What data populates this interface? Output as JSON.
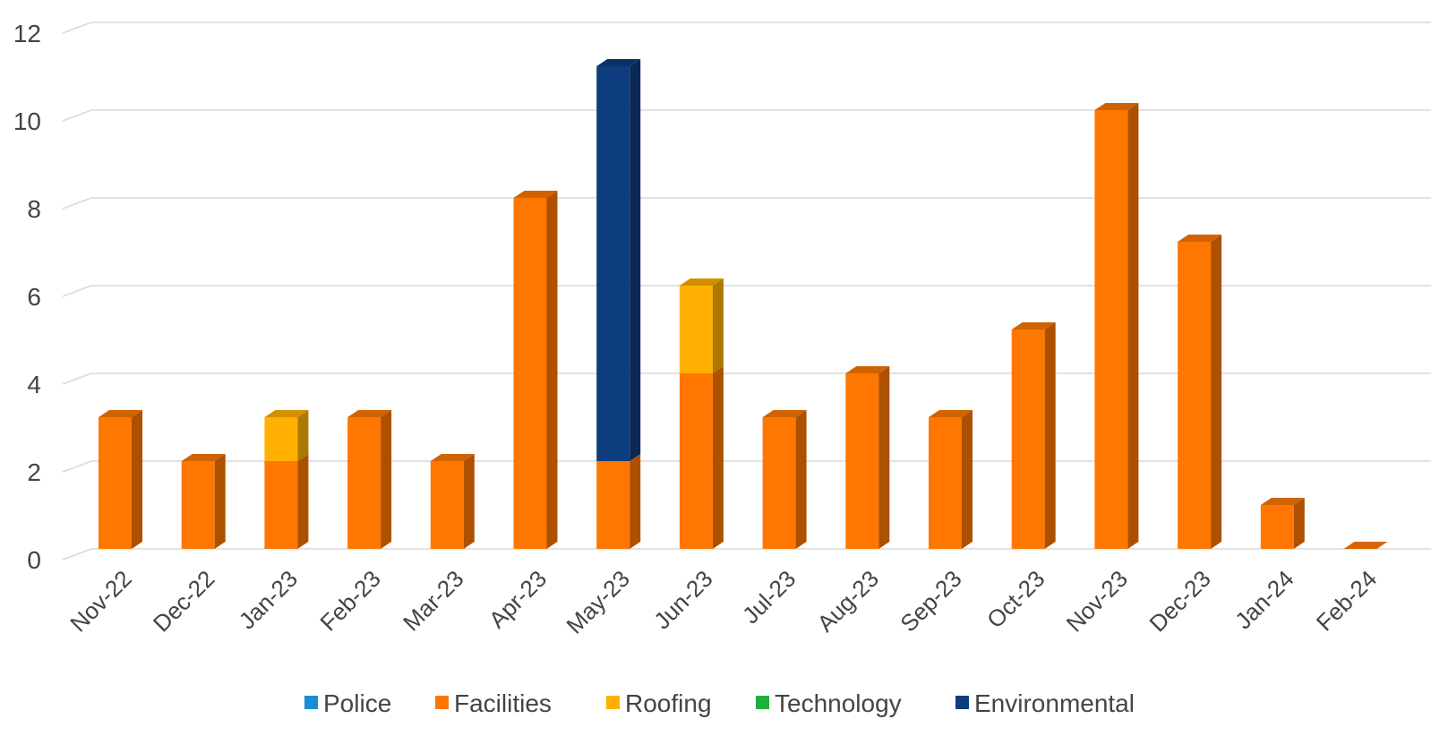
{
  "chart_data": {
    "type": "bar",
    "stacked": true,
    "three_d": true,
    "categories": [
      "Nov-22",
      "Dec-22",
      "Jan-23",
      "Feb-23",
      "Mar-23",
      "Apr-23",
      "May-23",
      "Jun-23",
      "Jul-23",
      "Aug-23",
      "Sep-23",
      "Oct-23",
      "Nov-23",
      "Dec-23",
      "Jan-24",
      "Feb-24"
    ],
    "series": [
      {
        "name": "Police",
        "color": "#1B8DD6",
        "values": [
          0,
          0,
          0,
          0,
          0,
          0,
          0,
          0,
          0,
          0,
          0,
          0,
          0,
          0,
          0,
          0
        ]
      },
      {
        "name": "Facilities",
        "color": "#FF7700",
        "values": [
          3,
          2,
          2,
          3,
          2,
          8,
          2,
          4,
          3,
          4,
          3,
          5,
          10,
          7,
          1,
          0
        ]
      },
      {
        "name": "Roofing",
        "color": "#FFB000",
        "values": [
          0,
          0,
          1,
          0,
          0,
          0,
          0,
          2,
          0,
          0,
          0,
          0,
          0,
          0,
          0,
          0
        ]
      },
      {
        "name": "Technology",
        "color": "#22B03C",
        "values": [
          0,
          0,
          0,
          0,
          0,
          0,
          0,
          0,
          0,
          0,
          0,
          0,
          0,
          0,
          0,
          0
        ]
      },
      {
        "name": "Environmental",
        "color": "#0E3D7E",
        "values": [
          0,
          0,
          0,
          0,
          0,
          0,
          9,
          0,
          0,
          0,
          0,
          0,
          0,
          0,
          0,
          0
        ]
      }
    ],
    "yticks": [
      "0",
      "2",
      "4",
      "6",
      "8",
      "10",
      "12"
    ],
    "ylim": [
      0,
      12
    ],
    "grid": true,
    "legend": "bottom",
    "title": "",
    "xlabel": "",
    "ylabel": ""
  }
}
